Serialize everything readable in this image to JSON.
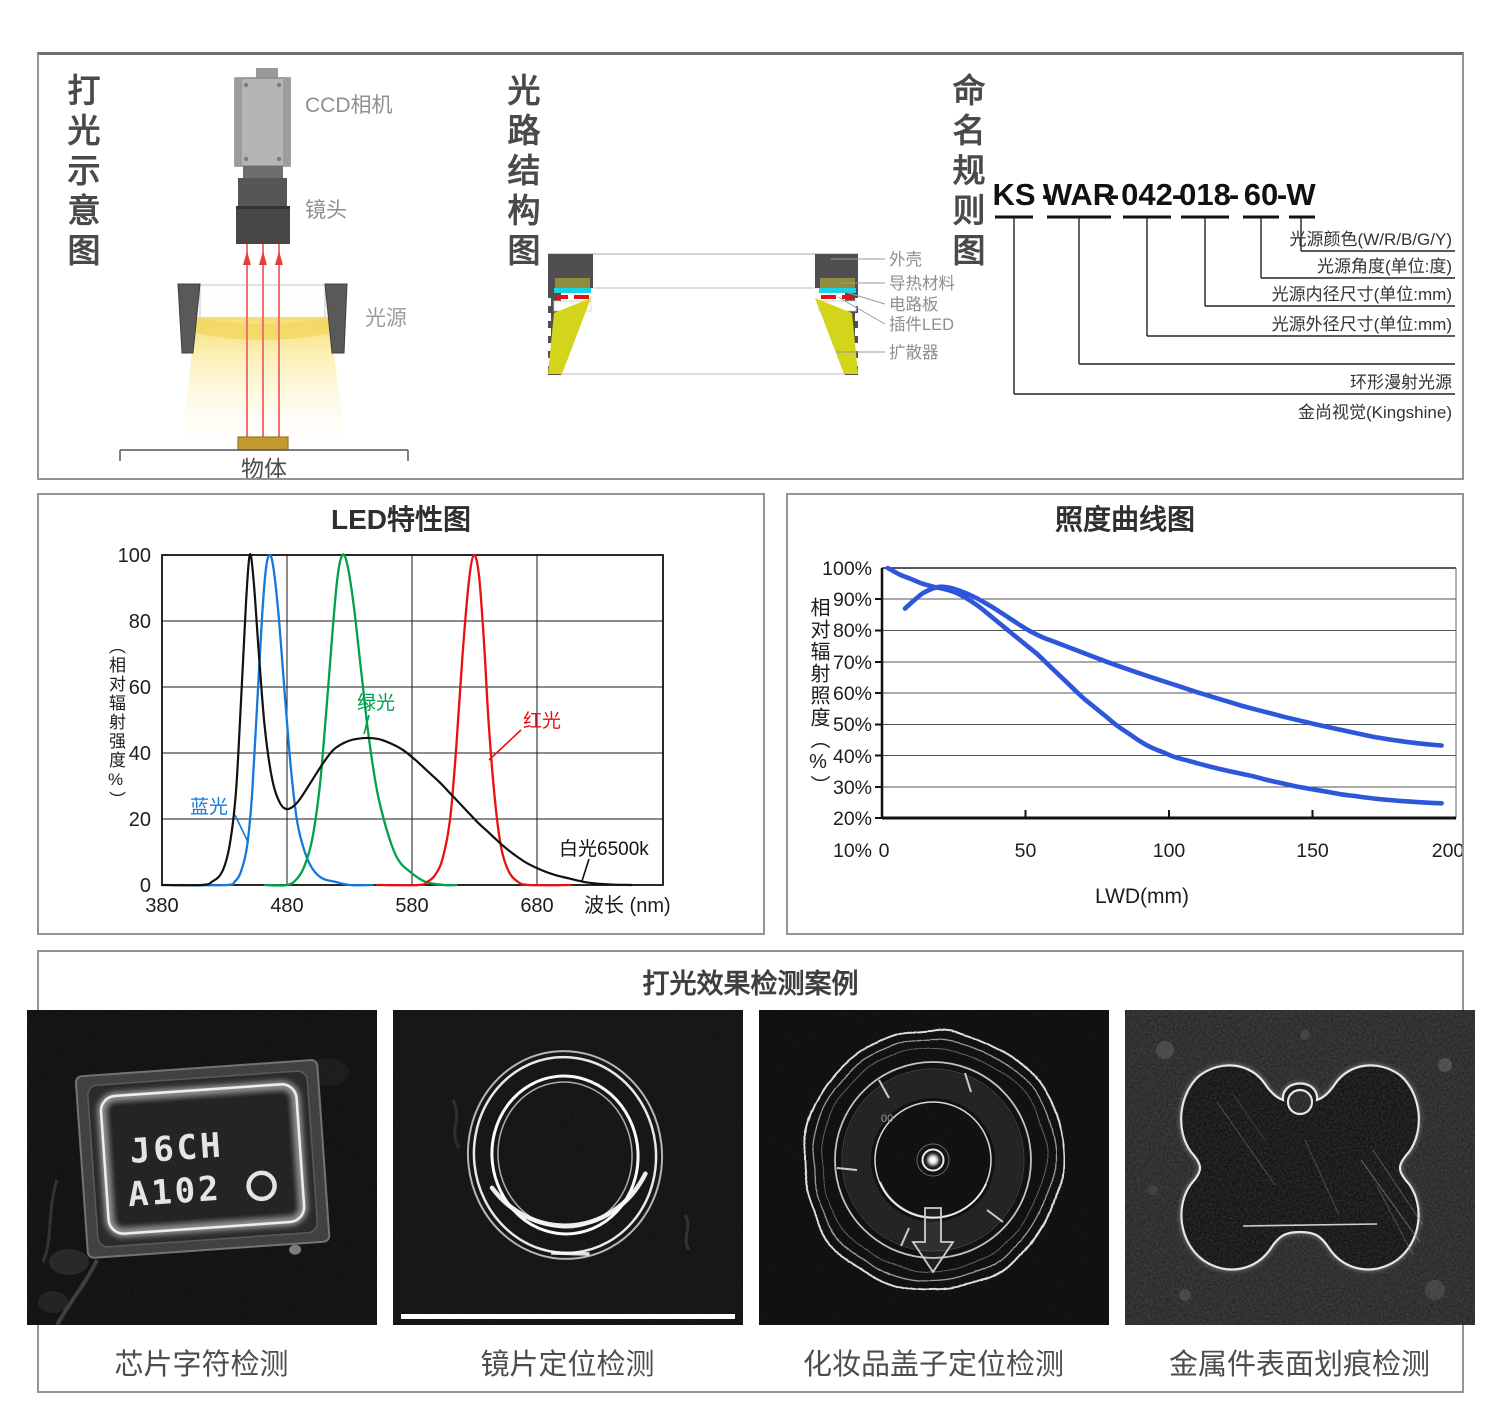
{
  "section1": {
    "titles": {
      "schematic": "打光示意图",
      "light_path": "光路结构图",
      "naming": "命名规则图"
    },
    "schematic_labels": {
      "camera": "CCD相机",
      "lens": "镜头",
      "light_source": "光源",
      "object": "物体"
    },
    "light_path_labels": [
      "外壳",
      "导热材料",
      "电路板",
      "插件LED",
      "扩散器"
    ],
    "naming": {
      "full_code": "KS-WAR-042-018-60-W",
      "segments": [
        "KS",
        "WAR",
        "042",
        "018",
        "60",
        "W"
      ],
      "separator": "-",
      "rules": [
        "光源颜色(W/R/B/G/Y)",
        "光源角度(单位:度)",
        "光源内径尺寸(单位:mm)",
        "光源外径尺寸(单位:mm)",
        "环形漫射光源",
        "金尚视觉(Kingshine)"
      ]
    }
  },
  "chart_data": [
    {
      "type": "line",
      "title": "LED特性图",
      "xlabel": "波长 (nm)",
      "ylabel": "（相对辐射强度%）",
      "xlim": [
        380,
        780
      ],
      "ylim": [
        0,
        100
      ],
      "xticks": [
        380,
        480,
        580,
        680
      ],
      "yticks": [
        0,
        20,
        40,
        60,
        80,
        100
      ],
      "grid": true,
      "legend_position": "inline-annotations",
      "series": [
        {
          "name": "蓝光",
          "color": "#1579d8",
          "points": [
            [
              395,
              0
            ],
            [
              432,
              0
            ],
            [
              438,
              1
            ],
            [
              443,
              4
            ],
            [
              448,
              12
            ],
            [
              452,
              28
            ],
            [
              456,
              55
            ],
            [
              460,
              82
            ],
            [
              463,
              96
            ],
            [
              466,
              100
            ],
            [
              469,
              96
            ],
            [
              473,
              82
            ],
            [
              478,
              58
            ],
            [
              483,
              35
            ],
            [
              488,
              19
            ],
            [
              494,
              10
            ],
            [
              500,
              5
            ],
            [
              508,
              2
            ],
            [
              518,
              1
            ],
            [
              530,
              0
            ],
            [
              548,
              0
            ]
          ]
        },
        {
          "name": "绿光",
          "color": "#00a14b",
          "points": [
            [
              462,
              0
            ],
            [
              480,
              0
            ],
            [
              488,
              2
            ],
            [
              494,
              6
            ],
            [
              500,
              14
            ],
            [
              506,
              30
            ],
            [
              511,
              52
            ],
            [
              516,
              76
            ],
            [
              520,
              93
            ],
            [
              524,
              100
            ],
            [
              528,
              97
            ],
            [
              533,
              85
            ],
            [
              539,
              65
            ],
            [
              545,
              45
            ],
            [
              552,
              28
            ],
            [
              560,
              16
            ],
            [
              568,
              8
            ],
            [
              578,
              4
            ],
            [
              590,
              1
            ],
            [
              605,
              0
            ],
            [
              615,
              0
            ]
          ]
        },
        {
          "name": "红光",
          "color": "#e81111",
          "points": [
            [
              552,
              0
            ],
            [
              585,
              0
            ],
            [
              592,
              1
            ],
            [
              598,
              3
            ],
            [
              604,
              8
            ],
            [
              610,
              20
            ],
            [
              615,
              42
            ],
            [
              620,
              70
            ],
            [
              625,
              92
            ],
            [
              629,
              100
            ],
            [
              633,
              94
            ],
            [
              637,
              74
            ],
            [
              641,
              48
            ],
            [
              646,
              25
            ],
            [
              651,
              11
            ],
            [
              657,
              4
            ],
            [
              664,
              1
            ],
            [
              673,
              0
            ],
            [
              706,
              0
            ]
          ]
        },
        {
          "name": "白光6500k",
          "color": "#111111",
          "points": [
            [
              380,
              0
            ],
            [
              412,
              0
            ],
            [
              420,
              1
            ],
            [
              428,
              4
            ],
            [
              434,
              12
            ],
            [
              439,
              28
            ],
            [
              443,
              55
            ],
            [
              447,
              85
            ],
            [
              450,
              100
            ],
            [
              453,
              93
            ],
            [
              457,
              72
            ],
            [
              462,
              48
            ],
            [
              468,
              32
            ],
            [
              474,
              25
            ],
            [
              480,
              23
            ],
            [
              488,
              25
            ],
            [
              497,
              30
            ],
            [
              507,
              36
            ],
            [
              517,
              41
            ],
            [
              528,
              43.5
            ],
            [
              540,
              44.5
            ],
            [
              552,
              44.3
            ],
            [
              562,
              43
            ],
            [
              572,
              41
            ],
            [
              582,
              38
            ],
            [
              592,
              34.5
            ],
            [
              602,
              31
            ],
            [
              612,
              27
            ],
            [
              622,
              23
            ],
            [
              632,
              19
            ],
            [
              642,
              15.5
            ],
            [
              652,
              12
            ],
            [
              662,
              9
            ],
            [
              672,
              6.5
            ],
            [
              683,
              4.5
            ],
            [
              694,
              3
            ],
            [
              705,
              2
            ],
            [
              716,
              1
            ],
            [
              728,
              0.4
            ],
            [
              742,
              0.1
            ],
            [
              755,
              0
            ]
          ]
        }
      ]
    },
    {
      "type": "line",
      "title": "照度曲线图",
      "xlabel": "LWD(mm)",
      "ylabel": "相对辐射照度（%）",
      "xlim": [
        0,
        200
      ],
      "ylim": [
        20,
        100
      ],
      "xticks": [
        0,
        50,
        100,
        150,
        200
      ],
      "ytick_labels": [
        "100%",
        "90%",
        "80%",
        "70%",
        "60%",
        "50%",
        "40%",
        "30%",
        "20%",
        "10%"
      ],
      "grid": true,
      "legend_position": "none",
      "series": [
        {
          "name": "curve-steep",
          "color": "#2e56db",
          "points": [
            [
              2,
              100
            ],
            [
              6,
              98
            ],
            [
              10,
              96.5
            ],
            [
              14,
              95
            ],
            [
              18,
              94
            ],
            [
              22,
              93.2
            ],
            [
              26,
              92
            ],
            [
              30,
              90
            ],
            [
              34,
              87.5
            ],
            [
              38,
              84.5
            ],
            [
              42,
              81.5
            ],
            [
              46,
              78.5
            ],
            [
              50,
              75.5
            ],
            [
              54,
              72.5
            ],
            [
              58,
              69
            ],
            [
              62,
              65.5
            ],
            [
              66,
              62
            ],
            [
              70,
              58.5
            ],
            [
              74,
              55.5
            ],
            [
              78,
              52.5
            ],
            [
              82,
              49.5
            ],
            [
              86,
              47
            ],
            [
              90,
              44.5
            ],
            [
              94,
              42.5
            ],
            [
              98,
              41
            ],
            [
              102,
              39.5
            ],
            [
              106,
              38.5
            ],
            [
              110,
              37.5
            ],
            [
              115,
              36.3
            ],
            [
              120,
              35.2
            ],
            [
              125,
              34.2
            ],
            [
              130,
              33.2
            ],
            [
              135,
              32
            ],
            [
              140,
              31
            ],
            [
              145,
              30
            ],
            [
              150,
              29.2
            ],
            [
              155,
              28.4
            ],
            [
              160,
              27.6
            ],
            [
              165,
              27
            ],
            [
              170,
              26.4
            ],
            [
              175,
              25.9
            ],
            [
              180,
              25.5
            ],
            [
              185,
              25.2
            ],
            [
              190,
              24.9
            ],
            [
              195,
              24.7
            ]
          ]
        },
        {
          "name": "curve-flat",
          "color": "#2e56db",
          "points": [
            [
              8,
              87
            ],
            [
              11,
              89.5
            ],
            [
              14,
              91.8
            ],
            [
              17,
              93.2
            ],
            [
              20,
              94
            ],
            [
              24,
              93.6
            ],
            [
              28,
              92.4
            ],
            [
              32,
              90.8
            ],
            [
              36,
              88.8
            ],
            [
              40,
              86.6
            ],
            [
              44,
              84.2
            ],
            [
              48,
              81.8
            ],
            [
              52,
              79.6
            ],
            [
              56,
              77.8
            ],
            [
              60,
              76.4
            ],
            [
              64,
              75
            ],
            [
              68,
              73.6
            ],
            [
              72,
              72.2
            ],
            [
              76,
              70.8
            ],
            [
              80,
              69.4
            ],
            [
              85,
              67.8
            ],
            [
              90,
              66.2
            ],
            [
              95,
              64.7
            ],
            [
              100,
              63.2
            ],
            [
              105,
              61.7
            ],
            [
              110,
              60.2
            ],
            [
              115,
              58.8
            ],
            [
              120,
              57.4
            ],
            [
              125,
              56
            ],
            [
              130,
              54.8
            ],
            [
              135,
              53.6
            ],
            [
              140,
              52.4
            ],
            [
              145,
              51.3
            ],
            [
              150,
              50.2
            ],
            [
              155,
              49.2
            ],
            [
              160,
              48.2
            ],
            [
              165,
              47.2
            ],
            [
              170,
              46.2
            ],
            [
              175,
              45.4
            ],
            [
              180,
              44.7
            ],
            [
              185,
              44.1
            ],
            [
              190,
              43.6
            ],
            [
              195,
              43.2
            ]
          ]
        }
      ]
    }
  ],
  "cases": {
    "title": "打光效果检测案例",
    "items": [
      {
        "caption": "芯片字符检测",
        "overlay_line1": "J6CH",
        "overlay_line2": "A102"
      },
      {
        "caption": "镜片定位检测"
      },
      {
        "caption": "化妆品盖子定位检测",
        "overlay_text": "00"
      },
      {
        "caption": "金属件表面划痕检测"
      }
    ]
  },
  "colors": {
    "illuminance_curve": "#2e56db",
    "blue_led": "#1579d8",
    "green_led": "#00a14b",
    "red_led": "#e81111",
    "white_led": "#111111",
    "diffuser_yellow": "#d3d41c",
    "circuit_cyan": "#17d3e6",
    "plugin_led_red": "#e81010",
    "glow_yellow": "#f6dd70",
    "object_gold": "#c49a33"
  }
}
